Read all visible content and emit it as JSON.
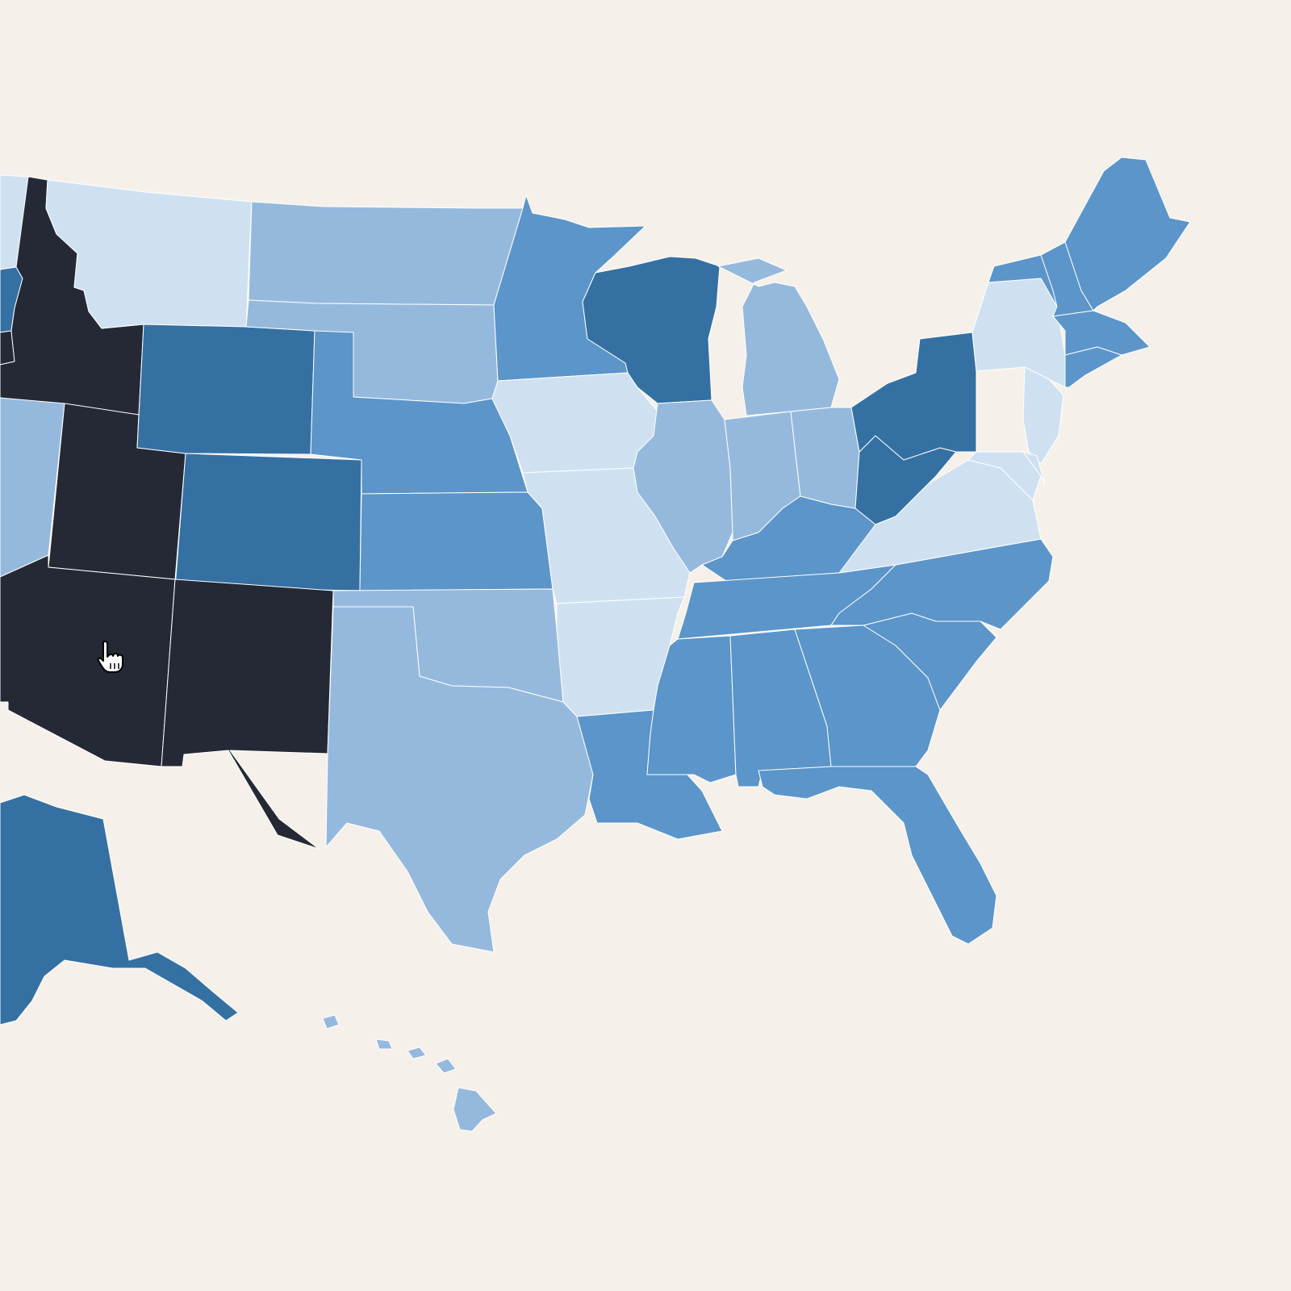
{
  "palette": {
    "background": "#f5f1ea",
    "border": "#ffffff",
    "bin_1": "#cfe1f1",
    "bin_2": "#95b9dd",
    "bin_3": "#5b95c9",
    "bin_4": "#3570a3",
    "bin_5": "#242935"
  },
  "states": [
    {
      "id": "WA",
      "bin": 1
    },
    {
      "id": "OR",
      "bin": 4
    },
    {
      "id": "CA",
      "bin": 5
    },
    {
      "id": "ID",
      "bin": 5
    },
    {
      "id": "NV",
      "bin": 2
    },
    {
      "id": "UT",
      "bin": 5
    },
    {
      "id": "AZ",
      "bin": 5
    },
    {
      "id": "MT",
      "bin": 1
    },
    {
      "id": "WY",
      "bin": 4
    },
    {
      "id": "CO",
      "bin": 4
    },
    {
      "id": "NM",
      "bin": 5
    },
    {
      "id": "ND",
      "bin": 2
    },
    {
      "id": "SD",
      "bin": 2
    },
    {
      "id": "NE",
      "bin": 3
    },
    {
      "id": "KS",
      "bin": 3
    },
    {
      "id": "OK",
      "bin": 2
    },
    {
      "id": "TX",
      "bin": 2
    },
    {
      "id": "MN",
      "bin": 3
    },
    {
      "id": "IA",
      "bin": 1
    },
    {
      "id": "MO",
      "bin": 1
    },
    {
      "id": "AR",
      "bin": 1
    },
    {
      "id": "LA",
      "bin": 3
    },
    {
      "id": "WI",
      "bin": 4
    },
    {
      "id": "IL",
      "bin": 2
    },
    {
      "id": "MI",
      "bin": 2
    },
    {
      "id": "IN",
      "bin": 2
    },
    {
      "id": "OH",
      "bin": 2
    },
    {
      "id": "KY",
      "bin": 3
    },
    {
      "id": "TN",
      "bin": 3
    },
    {
      "id": "MS",
      "bin": 3
    },
    {
      "id": "AL",
      "bin": 3
    },
    {
      "id": "GA",
      "bin": 3
    },
    {
      "id": "FL",
      "bin": 3
    },
    {
      "id": "SC",
      "bin": 3
    },
    {
      "id": "NC",
      "bin": 3
    },
    {
      "id": "VA",
      "bin": 1
    },
    {
      "id": "WV",
      "bin": 4
    },
    {
      "id": "PA",
      "bin": 4
    },
    {
      "id": "NY",
      "bin": 1
    },
    {
      "id": "VT",
      "bin": 3
    },
    {
      "id": "NH",
      "bin": 3
    },
    {
      "id": "ME",
      "bin": 3
    },
    {
      "id": "MA",
      "bin": 3
    },
    {
      "id": "CT",
      "bin": 3
    },
    {
      "id": "NJ",
      "bin": 1
    },
    {
      "id": "MD",
      "bin": 1
    },
    {
      "id": "DE",
      "bin": 1
    },
    {
      "id": "AK",
      "bin": 4
    },
    {
      "id": "HI",
      "bin": 2
    }
  ],
  "cursor_icon": "hand-pointer-icon"
}
